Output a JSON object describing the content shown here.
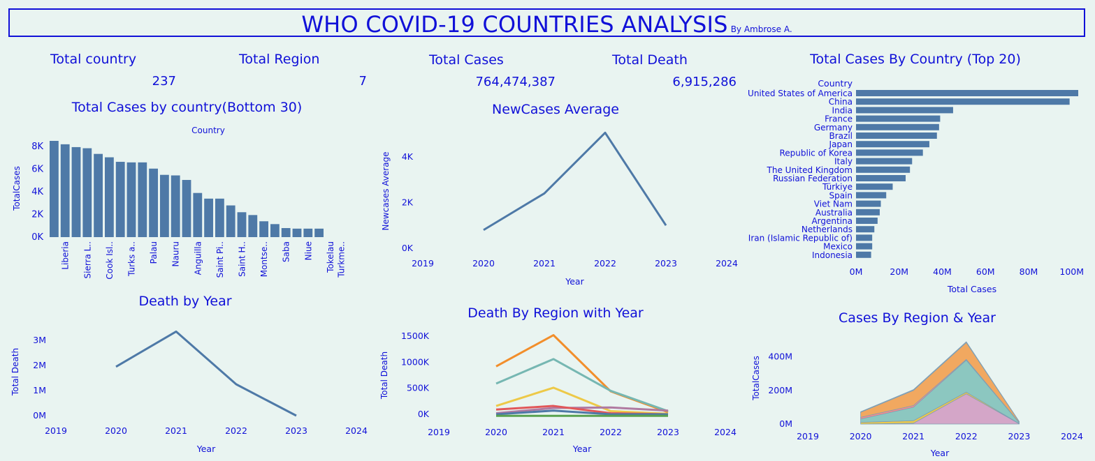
{
  "header": {
    "title": "WHO COVID-19 COUNTRIES ANALYSIS",
    "byline": "By Ambrose A."
  },
  "colors": {
    "accent": "#1010d8",
    "bar": "#4e79a7",
    "background": "#e9f4f1"
  },
  "kpis": {
    "total_country_label": "Total country",
    "total_country_value": "237",
    "total_region_label": "Total Region",
    "total_region_value": "7",
    "total_cases_label": "Total Cases",
    "total_cases_value": "764,474,387",
    "total_death_label": "Total Death",
    "total_death_value": "6,915,286"
  },
  "chart_data": [
    {
      "id": "bottom30",
      "type": "bar",
      "title": "Total Cases by country(Bottom 30)",
      "header_label": "Country",
      "xlabel": "",
      "ylabel": "TotalCases",
      "ylim": [
        0,
        8500
      ],
      "yticks": [
        "0K",
        "2K",
        "4K",
        "6K",
        "8K"
      ],
      "ytick_values": [
        0,
        2000,
        4000,
        6000,
        8000
      ],
      "values": [
        8500,
        8200,
        7950,
        7850,
        7350,
        7050,
        6650,
        6600,
        6600,
        6050,
        5500,
        5450,
        5050,
        3900,
        3400,
        3400,
        2800,
        2200,
        1950,
        1400,
        1150,
        800,
        750,
        750,
        750,
        0,
        0
      ],
      "labels": [
        "",
        "Liberia",
        "",
        "Sierra L..",
        "",
        "Cook Isl..",
        "",
        "Turks a..",
        "",
        "Palau",
        "",
        "Nauru",
        "",
        "Anguilla",
        "",
        "Saint Pi..",
        "",
        "Saint H..",
        "",
        "Montse..",
        "",
        "Saba",
        "",
        "Niue",
        "",
        "Tokelau",
        "Turkme.."
      ]
    },
    {
      "id": "newcases",
      "type": "line",
      "title": "NewCases Average",
      "xlabel": "Year",
      "ylabel": "Newcases Average",
      "x": [
        2020,
        2021,
        2022,
        2023
      ],
      "values": [
        800,
        2400,
        5050,
        1000
      ],
      "xticks": [
        "2019",
        "2020",
        "2021",
        "2022",
        "2023",
        "2024"
      ],
      "yticks": [
        "0K",
        "2K",
        "4K"
      ],
      "ytick_values": [
        0,
        2000,
        4000
      ],
      "xlim": [
        2019,
        2024
      ],
      "ylim": [
        0,
        5000
      ]
    },
    {
      "id": "top20",
      "type": "bar",
      "title": "Total Cases By Country (Top 20)",
      "header_label": "Country",
      "xlabel": "Total Cases",
      "categories": [
        "United States of America",
        "China",
        "India",
        "France",
        "Germany",
        "Brazil",
        "Japan",
        "Republic of Korea",
        "Italy",
        "The United Kingdom",
        "Russian Federation",
        "Türkiye",
        "Spain",
        "Viet Nam",
        "Australia",
        "Argentina",
        "Netherlands",
        "Iran (Islamic Republic of)",
        "Mexico",
        "Indonesia"
      ],
      "values": [
        103,
        99,
        45,
        39,
        38.5,
        37.5,
        34,
        31,
        26,
        25,
        23,
        17,
        14,
        11.5,
        11,
        10,
        8.5,
        7.5,
        7.5,
        7
      ],
      "xticks": [
        "0M",
        "20M",
        "40M",
        "60M",
        "80M",
        "100M"
      ],
      "xtick_values": [
        0,
        20,
        40,
        60,
        80,
        100
      ],
      "xlim": [
        0,
        103
      ]
    },
    {
      "id": "deathyear",
      "type": "line",
      "title": "Death by Year",
      "xlabel": "Year",
      "ylabel": "Total Death",
      "x": [
        2020,
        2021,
        2022,
        2023
      ],
      "values": [
        1.95,
        3.35,
        1.25,
        0.0
      ],
      "xticks": [
        "2019",
        "2020",
        "2021",
        "2022",
        "2023",
        "2024"
      ],
      "yticks": [
        "0M",
        "1M",
        "2M",
        "3M"
      ],
      "ytick_values": [
        0,
        1,
        2,
        3
      ],
      "xlim": [
        2019,
        2024
      ],
      "ylim": [
        0,
        3.5
      ]
    },
    {
      "id": "deathregion",
      "type": "line",
      "title": "Death By Region with Year",
      "xlabel": "Year",
      "ylabel": "Total Death",
      "x": [
        2020,
        2021,
        2022,
        2023
      ],
      "series": [
        {
          "name": "orange",
          "color": "#f28e2b",
          "values": [
            920,
            1520,
            440,
            40
          ]
        },
        {
          "name": "teal",
          "color": "#76b7b2",
          "values": [
            590,
            1060,
            450,
            60
          ]
        },
        {
          "name": "yellow",
          "color": "#edc948",
          "values": [
            160,
            510,
            60,
            10
          ]
        },
        {
          "name": "purple",
          "color": "#b07aa1",
          "values": [
            20,
            120,
            130,
            70
          ]
        },
        {
          "name": "red",
          "color": "#e15759",
          "values": [
            90,
            160,
            20,
            0
          ]
        },
        {
          "name": "blue",
          "color": "#4e79a7",
          "values": [
            0,
            70,
            0,
            0
          ]
        },
        {
          "name": "green",
          "color": "#59a14f",
          "values": [
            -30,
            -30,
            -30,
            -30
          ]
        }
      ],
      "xticks": [
        "2019",
        "2020",
        "2021",
        "2022",
        "2023",
        "2024"
      ],
      "yticks": [
        "0K",
        "500K",
        "1000K",
        "1500K"
      ],
      "ytick_values": [
        0,
        500,
        1000,
        1500
      ],
      "xlim": [
        2019,
        2024
      ],
      "ylim": [
        0,
        1500
      ]
    },
    {
      "id": "casesregion",
      "type": "area",
      "title": "Cases By Region & Year",
      "xlabel": "Year",
      "ylabel": "TotalCases",
      "x": [
        2020,
        2021,
        2022,
        2023
      ],
      "series": [
        {
          "name": "purple",
          "color": "#d4a6c8",
          "values": [
            0,
            5,
            180,
            2
          ]
        },
        {
          "name": "yellow",
          "color": "#edc948",
          "values": [
            10,
            15,
            10,
            1
          ]
        },
        {
          "name": "teal",
          "color": "#8cc7c0",
          "values": [
            20,
            80,
            190,
            5
          ]
        },
        {
          "name": "red",
          "color": "#ff8a8a",
          "values": [
            10,
            10,
            5,
            1
          ]
        },
        {
          "name": "orange",
          "color": "#f1a860",
          "values": [
            30,
            90,
            100,
            6
          ]
        },
        {
          "name": "blue",
          "color": "#8fa9c9",
          "values": [
            3,
            5,
            5,
            1
          ]
        }
      ],
      "xticks": [
        "2019",
        "2020",
        "2021",
        "2022",
        "2023",
        "2024"
      ],
      "yticks": [
        "0M",
        "200M",
        "400M"
      ],
      "ytick_values": [
        0,
        200,
        400
      ],
      "xlim": [
        2019,
        2024
      ],
      "ylim": [
        0,
        490
      ]
    }
  ]
}
